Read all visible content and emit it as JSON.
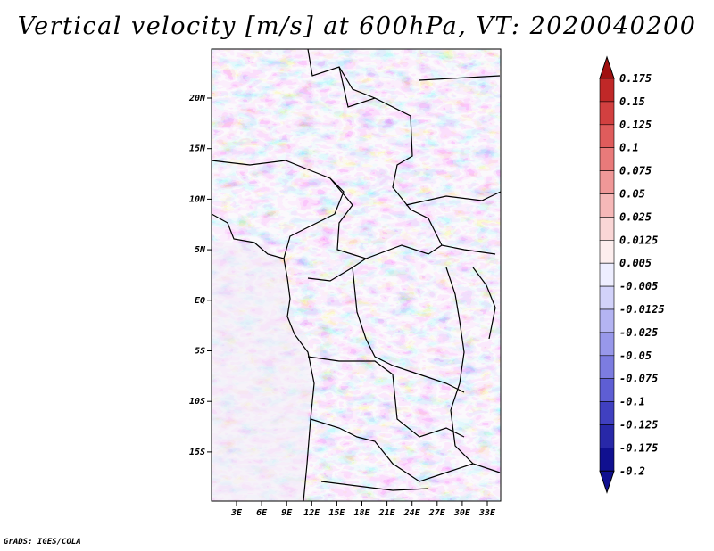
{
  "title": "Vertical velocity [m/s] at 600hPa, VT: 2020040200",
  "credit": "GrADS: IGES/COLA",
  "axes": {
    "lat_labels": [
      "20N",
      "15N",
      "10N",
      "5N",
      "EQ",
      "5S",
      "10S",
      "15S"
    ],
    "lon_labels": [
      "3E",
      "6E",
      "9E",
      "12E",
      "15E",
      "18E",
      "21E",
      "24E",
      "27E",
      "30E",
      "33E"
    ]
  },
  "colorbar": {
    "labels": [
      "0.175",
      "0.15",
      "0.125",
      "0.1",
      "0.075",
      "0.05",
      "0.025",
      "0.0125",
      "0.005",
      "-0.005",
      "-0.0125",
      "-0.025",
      "-0.05",
      "-0.075",
      "-0.1",
      "-0.125",
      "-0.175",
      "-0.2"
    ],
    "colors": [
      "#a01010",
      "#c02828",
      "#d24040",
      "#df5c5c",
      "#e97a7a",
      "#f09898",
      "#f6b8b8",
      "#fad6d6",
      "#fdeeee",
      "#eeeeff",
      "#d2d2fa",
      "#b4b4f2",
      "#9898ea",
      "#7c7ce0",
      "#5e5ed4",
      "#4040c0",
      "#2828a8",
      "#101090"
    ]
  }
}
